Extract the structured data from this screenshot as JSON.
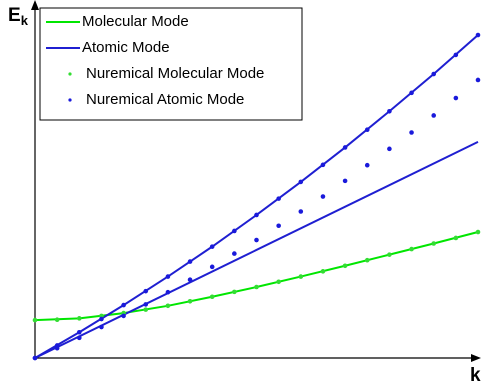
{
  "chart_data": {
    "type": "line",
    "ylabel": "E",
    "ylabel_sub": "k",
    "xlabel": "k",
    "xlim": [
      0,
      10
    ],
    "ylim": [
      0,
      10
    ],
    "legend": "upper left",
    "series": [
      {
        "name": "Molecular Mode",
        "color": "#00e600",
        "style": "line",
        "x": [
          0,
          1,
          2,
          3,
          4,
          5,
          6,
          7,
          8,
          9,
          10
        ],
        "values": [
          1.09,
          1.14,
          1.29,
          1.5,
          1.76,
          2.04,
          2.34,
          2.65,
          2.97,
          3.29,
          3.62
        ]
      },
      {
        "name": "Atomic Mode",
        "color": "#1f1fd1",
        "style": "line",
        "x": [
          0,
          1,
          2,
          3,
          4,
          5,
          6,
          7,
          8,
          9,
          10
        ],
        "values": [
          0,
          0.74,
          1.52,
          2.34,
          3.2,
          4.11,
          5.06,
          6.05,
          7.09,
          8.16,
          9.28
        ]
      },
      {
        "color": "#1f1fd1",
        "style": "line",
        "x": [
          0,
          10
        ],
        "values": [
          0,
          6.21
        ]
      },
      {
        "name": "Nuremical Molecular Mode",
        "color": "#33dd33",
        "style": "dots",
        "x": [
          0,
          0.5,
          1,
          1.5,
          2,
          2.5,
          3,
          3.5,
          4,
          4.5,
          5,
          5.5,
          6,
          6.5,
          7,
          7.5,
          8,
          8.5,
          9,
          9.5,
          10
        ],
        "values": [
          1.09,
          1.1,
          1.14,
          1.21,
          1.29,
          1.39,
          1.5,
          1.63,
          1.76,
          1.9,
          2.04,
          2.19,
          2.34,
          2.49,
          2.65,
          2.81,
          2.97,
          3.13,
          3.29,
          3.45,
          3.62
        ]
      },
      {
        "name": "Nuremical Atomic Mode",
        "color": "#1a1adb",
        "style": "dots",
        "x": [
          0,
          0.5,
          1,
          1.5,
          2,
          2.5,
          3,
          3.5,
          4,
          4.5,
          5,
          5.5,
          6,
          6.5,
          7,
          7.5,
          8,
          8.5,
          9,
          9.5,
          10
        ],
        "values": [
          0,
          0.36,
          0.74,
          1.12,
          1.52,
          1.92,
          2.34,
          2.77,
          3.2,
          3.65,
          4.11,
          4.58,
          5.06,
          5.55,
          6.05,
          6.56,
          7.09,
          7.62,
          8.16,
          8.71,
          9.28
        ]
      },
      {
        "color": "#1a1adb",
        "style": "dots",
        "x": [
          0,
          0.5,
          1,
          1.5,
          2,
          2.5,
          3,
          3.5,
          4,
          4.5,
          5,
          5.5,
          6,
          6.5,
          7,
          7.5,
          8,
          8.5,
          9,
          9.5,
          10
        ],
        "values": [
          0,
          0.28,
          0.58,
          0.89,
          1.21,
          1.54,
          1.89,
          2.25,
          2.62,
          3,
          3.39,
          3.8,
          4.21,
          4.64,
          5.09,
          5.54,
          6.01,
          6.48,
          6.97,
          7.47,
          7.99
        ]
      }
    ]
  }
}
